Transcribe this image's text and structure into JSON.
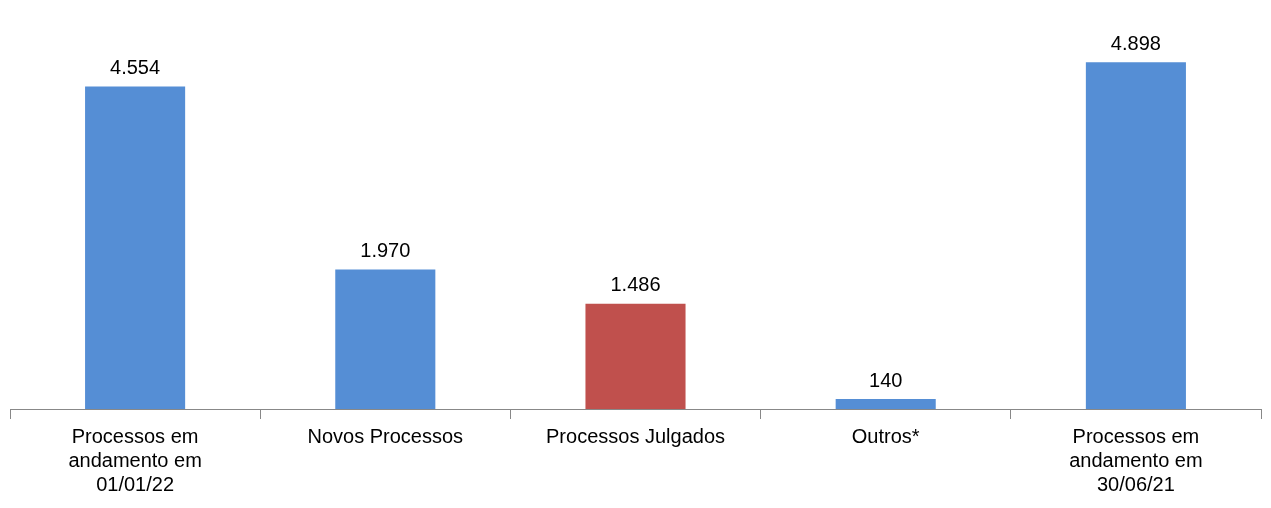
{
  "chart_data": {
    "type": "bar",
    "categories": [
      "Processos em andamento em 01/01/22",
      "Novos Processos",
      "Processos Julgados",
      "Outros*",
      "Processos em andamento em 30/06/21"
    ],
    "values": [
      4554,
      1970,
      1486,
      140,
      4898
    ],
    "colors": [
      "#558ed5",
      "#558ed5",
      "#c0504d",
      "#558ed5",
      "#558ed5"
    ],
    "value_labels": [
      "4.554",
      "1.970",
      "1.486",
      "140",
      "4.898"
    ],
    "grid": false,
    "legend": false
  }
}
